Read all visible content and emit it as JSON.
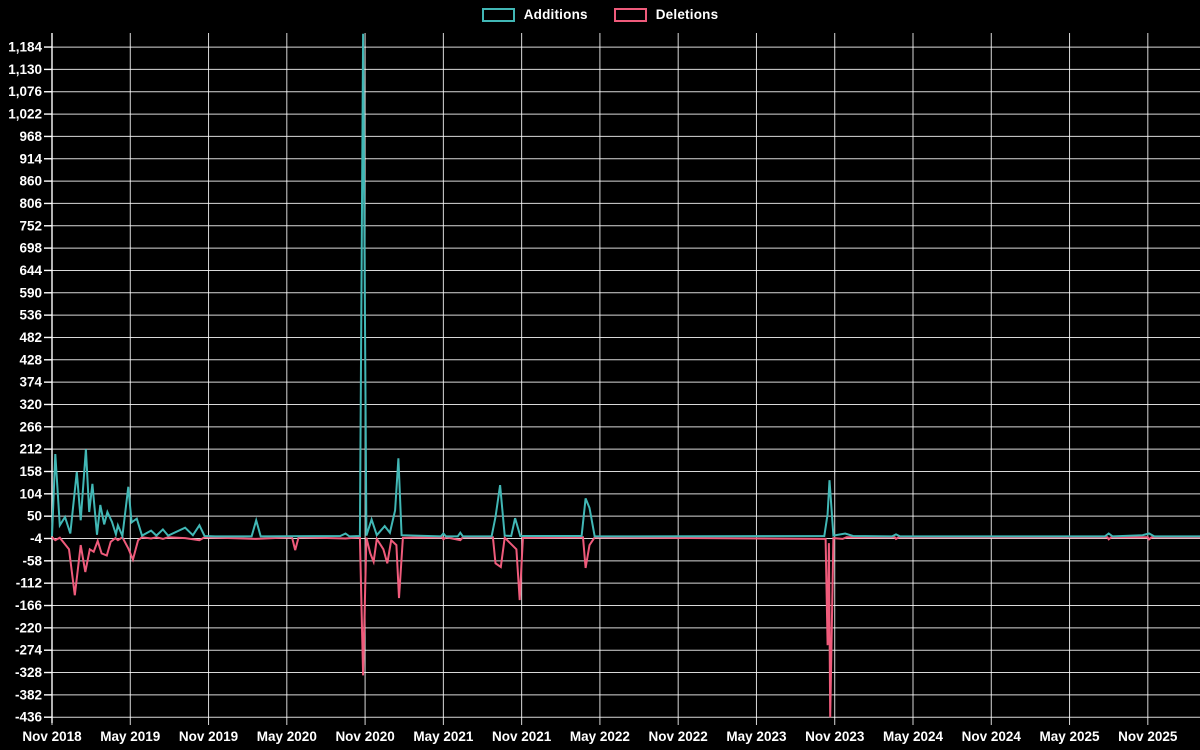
{
  "legend": {
    "items": [
      {
        "label": "Additions",
        "color": "#41b7b5"
      },
      {
        "label": "Deletions",
        "color": "#ef5b7b"
      }
    ]
  },
  "chart_data": {
    "type": "line",
    "title": "",
    "xlabel": "",
    "ylabel": "",
    "background": "#000000",
    "grid": true,
    "grid_color": "rgba(255,255,255,0.85)",
    "axis_color": "#ffffff",
    "text_color": "#ffffff",
    "legend_position": "top-center",
    "x_tick_labels": [
      "Nov 2018",
      "May 2019",
      "Nov 2019",
      "May 2020",
      "Nov 2020",
      "May 2021",
      "Nov 2021",
      "May 2022",
      "Nov 2022",
      "May 2023",
      "Nov 2023",
      "May 2024",
      "Nov 2024",
      "May 2025",
      "Nov 2025"
    ],
    "x_tick_interval_months": 6,
    "xlim_months": [
      0,
      88
    ],
    "y_ticks": [
      1184,
      1130,
      1076,
      1022,
      968,
      914,
      860,
      806,
      752,
      698,
      644,
      590,
      536,
      482,
      428,
      374,
      320,
      266,
      212,
      158,
      104,
      50,
      -4,
      -58,
      -112,
      -166,
      -220,
      -274,
      -328,
      -382,
      -436
    ],
    "ylim": [
      -450,
      1218
    ],
    "series": [
      {
        "name": "Deletions",
        "color": "#ef5b7b",
        "points": [
          [
            0,
            -1
          ],
          [
            0.25,
            -8
          ],
          [
            0.6,
            -2
          ],
          [
            1.3,
            -30
          ],
          [
            1.75,
            -141
          ],
          [
            2.2,
            -20
          ],
          [
            2.55,
            -85
          ],
          [
            2.9,
            -30
          ],
          [
            3.2,
            -36
          ],
          [
            3.5,
            -10
          ],
          [
            3.8,
            -40
          ],
          [
            4.2,
            -45
          ],
          [
            4.5,
            -12
          ],
          [
            4.85,
            -3
          ],
          [
            5.05,
            -8
          ],
          [
            5.4,
            -1
          ],
          [
            5.85,
            -28
          ],
          [
            6.2,
            -55
          ],
          [
            6.6,
            -8
          ],
          [
            6.9,
            -1
          ],
          [
            7.6,
            -4
          ],
          [
            8.0,
            -1
          ],
          [
            8.5,
            -5
          ],
          [
            8.9,
            -1
          ],
          [
            10.2,
            -3
          ],
          [
            11.3,
            -8
          ],
          [
            11.7,
            -1
          ],
          [
            15.65,
            -5
          ],
          [
            18.4,
            -1
          ],
          [
            18.64,
            -32
          ],
          [
            18.9,
            -1
          ],
          [
            22.5,
            -4
          ],
          [
            23.6,
            -1
          ],
          [
            23.85,
            -335
          ],
          [
            24.1,
            -2
          ],
          [
            24.4,
            -40
          ],
          [
            24.65,
            -60
          ],
          [
            24.9,
            -5
          ],
          [
            25.4,
            -30
          ],
          [
            25.7,
            -64
          ],
          [
            26.0,
            -8
          ],
          [
            26.4,
            -20
          ],
          [
            26.6,
            -148
          ],
          [
            26.9,
            -2
          ],
          [
            29.9,
            -1
          ],
          [
            30.0,
            -6
          ],
          [
            30.2,
            -1
          ],
          [
            31.3,
            -8
          ],
          [
            31.5,
            -1
          ],
          [
            33.8,
            -1
          ],
          [
            34.0,
            -64
          ],
          [
            34.4,
            -73
          ],
          [
            34.7,
            -2
          ],
          [
            35.6,
            -30
          ],
          [
            35.85,
            -153
          ],
          [
            36.1,
            -2
          ],
          [
            40.7,
            -1
          ],
          [
            40.9,
            -75
          ],
          [
            41.2,
            -20
          ],
          [
            41.6,
            -1
          ],
          [
            59.3,
            -5
          ],
          [
            59.45,
            -262
          ],
          [
            59.55,
            -15
          ],
          [
            59.65,
            -436
          ],
          [
            59.9,
            -3
          ],
          [
            60.6,
            -5
          ],
          [
            60.9,
            -1
          ],
          [
            64.6,
            -1
          ],
          [
            64.7,
            -5
          ],
          [
            64.9,
            -1
          ],
          [
            80.9,
            -1
          ],
          [
            81.0,
            -6
          ],
          [
            81.2,
            -1
          ],
          [
            84.0,
            -1
          ],
          [
            84.1,
            -6
          ],
          [
            84.3,
            -1
          ],
          [
            88.0,
            -1
          ]
        ]
      },
      {
        "name": "Additions",
        "color": "#41b7b5",
        "points": [
          [
            0,
            2
          ],
          [
            0.25,
            200
          ],
          [
            0.6,
            28
          ],
          [
            1.0,
            48
          ],
          [
            1.4,
            8
          ],
          [
            1.9,
            157
          ],
          [
            2.2,
            40
          ],
          [
            2.6,
            212
          ],
          [
            2.85,
            60
          ],
          [
            3.1,
            128
          ],
          [
            3.45,
            5
          ],
          [
            3.7,
            77
          ],
          [
            4.0,
            30
          ],
          [
            4.25,
            60
          ],
          [
            4.6,
            36
          ],
          [
            4.9,
            6
          ],
          [
            5.05,
            28
          ],
          [
            5.4,
            2
          ],
          [
            5.85,
            121
          ],
          [
            6.1,
            35
          ],
          [
            6.5,
            44
          ],
          [
            6.9,
            3
          ],
          [
            7.6,
            15
          ],
          [
            8.0,
            3
          ],
          [
            8.5,
            18
          ],
          [
            8.9,
            3
          ],
          [
            10.2,
            22
          ],
          [
            10.8,
            4
          ],
          [
            11.3,
            28
          ],
          [
            11.7,
            2
          ],
          [
            12.5,
            1
          ],
          [
            15.3,
            1
          ],
          [
            15.65,
            40
          ],
          [
            16.0,
            1
          ],
          [
            22.1,
            2
          ],
          [
            22.5,
            8
          ],
          [
            22.8,
            1
          ],
          [
            23.6,
            2
          ],
          [
            23.85,
            1216
          ],
          [
            24.1,
            3
          ],
          [
            24.5,
            42
          ],
          [
            24.9,
            4
          ],
          [
            25.5,
            26
          ],
          [
            25.9,
            10
          ],
          [
            26.3,
            64
          ],
          [
            26.55,
            190
          ],
          [
            26.8,
            4
          ],
          [
            29.8,
            1
          ],
          [
            30.0,
            8
          ],
          [
            30.2,
            1
          ],
          [
            31.1,
            1
          ],
          [
            31.3,
            10
          ],
          [
            31.5,
            1
          ],
          [
            33.7,
            1
          ],
          [
            34.0,
            48
          ],
          [
            34.35,
            125
          ],
          [
            34.7,
            3
          ],
          [
            35.2,
            2
          ],
          [
            35.5,
            45
          ],
          [
            35.9,
            2
          ],
          [
            40.6,
            2
          ],
          [
            40.9,
            93
          ],
          [
            41.2,
            70
          ],
          [
            41.6,
            1
          ],
          [
            59.2,
            2
          ],
          [
            59.45,
            55
          ],
          [
            59.6,
            137
          ],
          [
            59.9,
            3
          ],
          [
            60.8,
            8
          ],
          [
            61.4,
            2
          ],
          [
            64.4,
            1
          ],
          [
            64.7,
            6
          ],
          [
            65.0,
            1
          ],
          [
            80.7,
            1
          ],
          [
            81.0,
            8
          ],
          [
            81.3,
            1
          ],
          [
            83.6,
            4
          ],
          [
            84.1,
            8
          ],
          [
            84.5,
            1
          ],
          [
            88.0,
            1
          ]
        ]
      }
    ]
  }
}
